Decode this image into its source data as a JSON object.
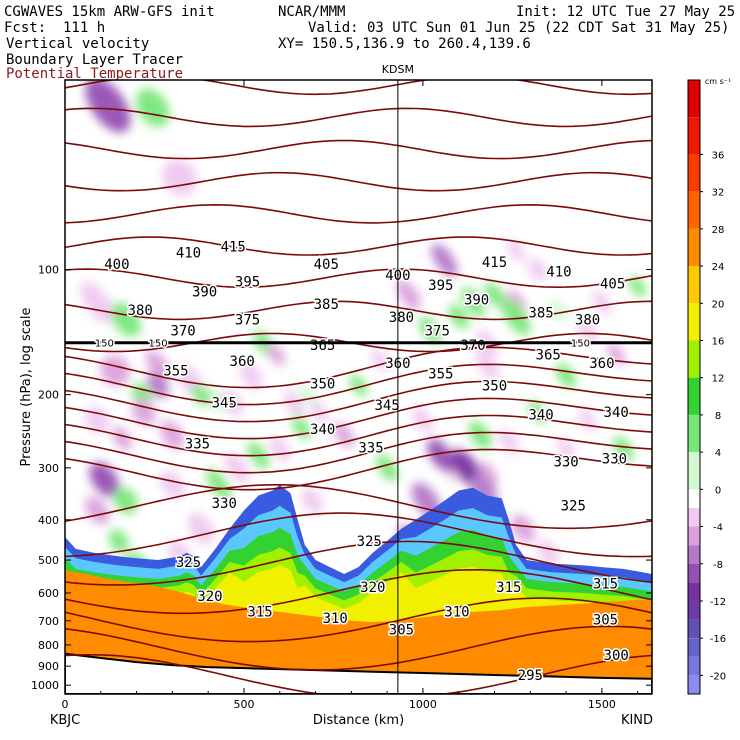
{
  "header": {
    "model": "CGWAVES 15km ARW-GFS init",
    "fcst": "Fcst:  111 h",
    "org": "NCAR/MMM",
    "init": "Init: 12 UTC Tue 27 May 25",
    "valid": "Valid: 03 UTC Sun 01 Jun 25 (22 CDT Sat 31 May 25)",
    "xy": "XY= 150.5,136.9 to 260.4,139.6",
    "fields": [
      {
        "label": "Vertical velocity",
        "color": "#000000"
      },
      {
        "label": "Boundary Layer Tracer",
        "color": "#000000"
      },
      {
        "label": "Potential Temperature",
        "color": "#8b1a1a"
      }
    ]
  },
  "chart_data": {
    "type": "heatmap",
    "title": "",
    "xlabel": "Distance (km)",
    "ylabel": "Pressure (hPa), log scale",
    "xlim": [
      0,
      1640
    ],
    "ylim": [
      1050,
      35
    ],
    "yscale": "log",
    "x_ticks": [
      0,
      500,
      1000,
      1500
    ],
    "x_tick_labels": [
      "0",
      "500",
      "1000",
      "1500"
    ],
    "y_ticks": [
      100,
      200,
      300,
      400,
      500,
      600,
      700,
      800,
      900,
      1000
    ],
    "y_tick_labels": [
      "100",
      "200",
      "300",
      "400",
      "500",
      "600",
      "700",
      "800",
      "900",
      "1000"
    ],
    "left_endpoint": "KBJC",
    "right_endpoint": "KIND",
    "marker": {
      "label": "KDSM",
      "x": 930
    },
    "tropopause_pressure": 150,
    "tropopause_labels": [
      "150",
      "150",
      "150"
    ],
    "colorbar": {
      "unit": "cm s⁻¹",
      "min": -22,
      "max": 44,
      "tick_values": [
        36,
        32,
        28,
        24,
        20,
        16,
        12,
        8,
        4,
        0,
        -4,
        -8,
        -12,
        -16,
        -20
      ],
      "tick_labels": [
        "36",
        "32",
        "28",
        "24",
        "20",
        "16",
        "12",
        "8",
        "4",
        "0",
        "-4",
        "-8",
        "-12",
        "-16",
        "-20"
      ],
      "bins": [
        {
          "lo": 40,
          "hi": 44,
          "color": "#e00000"
        },
        {
          "lo": 36,
          "hi": 40,
          "color": "#f01800"
        },
        {
          "lo": 32,
          "hi": 36,
          "color": "#fa3c00"
        },
        {
          "lo": 28,
          "hi": 32,
          "color": "#ff6400"
        },
        {
          "lo": 24,
          "hi": 28,
          "color": "#ff8c00"
        },
        {
          "lo": 20,
          "hi": 24,
          "color": "#ffc800"
        },
        {
          "lo": 16,
          "hi": 20,
          "color": "#f0f000"
        },
        {
          "lo": 12,
          "hi": 16,
          "color": "#a0f000"
        },
        {
          "lo": 8,
          "hi": 12,
          "color": "#32d232"
        },
        {
          "lo": 4,
          "hi": 8,
          "color": "#78e678"
        },
        {
          "lo": 0,
          "hi": 4,
          "color": "#d2f8d2"
        },
        {
          "lo": -2,
          "hi": 0,
          "color": "#ffffff"
        },
        {
          "lo": -4,
          "hi": -2,
          "color": "#f0c8f0"
        },
        {
          "lo": -6,
          "hi": -4,
          "color": "#dca0dc"
        },
        {
          "lo": -8,
          "hi": -6,
          "color": "#b478c8"
        },
        {
          "lo": -10,
          "hi": -8,
          "color": "#9650b4"
        },
        {
          "lo": -12,
          "hi": -10,
          "color": "#7832a0"
        },
        {
          "lo": -14,
          "hi": -12,
          "color": "#6e3caa"
        },
        {
          "lo": -16,
          "hi": -14,
          "color": "#6450b4"
        },
        {
          "lo": -18,
          "hi": -16,
          "color": "#6464c8"
        },
        {
          "lo": -20,
          "hi": -18,
          "color": "#7878dc"
        },
        {
          "lo": -22,
          "hi": -20,
          "color": "#8c8cf0"
        }
      ]
    },
    "isentrope_color": "#7b0b0b",
    "isentrope_labels": [
      {
        "text": "415",
        "x": 470,
        "p": 88
      },
      {
        "text": "410",
        "x": 345,
        "p": 91
      },
      {
        "text": "400",
        "x": 145,
        "p": 97
      },
      {
        "text": "405",
        "x": 730,
        "p": 97
      },
      {
        "text": "400",
        "x": 930,
        "p": 103
      },
      {
        "text": "415",
        "x": 1200,
        "p": 96
      },
      {
        "text": "410",
        "x": 1380,
        "p": 101
      },
      {
        "text": "405",
        "x": 1530,
        "p": 108
      },
      {
        "text": "395",
        "x": 510,
        "p": 107
      },
      {
        "text": "390",
        "x": 390,
        "p": 113
      },
      {
        "text": "395",
        "x": 1050,
        "p": 109
      },
      {
        "text": "390",
        "x": 1150,
        "p": 118
      },
      {
        "text": "385",
        "x": 730,
        "p": 121
      },
      {
        "text": "385",
        "x": 1330,
        "p": 127
      },
      {
        "text": "380",
        "x": 210,
        "p": 125
      },
      {
        "text": "375",
        "x": 510,
        "p": 132
      },
      {
        "text": "380",
        "x": 940,
        "p": 130
      },
      {
        "text": "380",
        "x": 1460,
        "p": 132
      },
      {
        "text": "370",
        "x": 330,
        "p": 140
      },
      {
        "text": "375",
        "x": 1040,
        "p": 140
      },
      {
        "text": "370",
        "x": 1140,
        "p": 152
      },
      {
        "text": "365",
        "x": 720,
        "p": 152
      },
      {
        "text": "365",
        "x": 1350,
        "p": 160
      },
      {
        "text": "360",
        "x": 495,
        "p": 166
      },
      {
        "text": "360",
        "x": 930,
        "p": 168
      },
      {
        "text": "360",
        "x": 1500,
        "p": 168
      },
      {
        "text": "355",
        "x": 310,
        "p": 175
      },
      {
        "text": "355",
        "x": 1050,
        "p": 178
      },
      {
        "text": "350",
        "x": 720,
        "p": 188
      },
      {
        "text": "350",
        "x": 1200,
        "p": 190
      },
      {
        "text": "345",
        "x": 445,
        "p": 209
      },
      {
        "text": "345",
        "x": 900,
        "p": 212
      },
      {
        "text": "340",
        "x": 720,
        "p": 242
      },
      {
        "text": "340",
        "x": 1330,
        "p": 223
      },
      {
        "text": "340",
        "x": 1540,
        "p": 220
      },
      {
        "text": "335",
        "x": 370,
        "p": 262
      },
      {
        "text": "335",
        "x": 855,
        "p": 268
      },
      {
        "text": "330",
        "x": 1400,
        "p": 290
      },
      {
        "text": "330",
        "x": 1535,
        "p": 285
      },
      {
        "text": "330",
        "x": 445,
        "p": 365
      },
      {
        "text": "325",
        "x": 1420,
        "p": 370
      },
      {
        "text": "325",
        "x": 850,
        "p": 450
      },
      {
        "text": "325",
        "x": 345,
        "p": 505
      },
      {
        "text": "320",
        "x": 405,
        "p": 610
      },
      {
        "text": "320",
        "x": 860,
        "p": 580
      },
      {
        "text": "315",
        "x": 545,
        "p": 665
      },
      {
        "text": "315",
        "x": 1240,
        "p": 580
      },
      {
        "text": "315",
        "x": 1510,
        "p": 570
      },
      {
        "text": "310",
        "x": 755,
        "p": 690
      },
      {
        "text": "310",
        "x": 1095,
        "p": 665
      },
      {
        "text": "305",
        "x": 940,
        "p": 735
      },
      {
        "text": "305",
        "x": 1510,
        "p": 695
      },
      {
        "text": "300",
        "x": 1540,
        "p": 845
      },
      {
        "text": "295",
        "x": 1300,
        "p": 945
      }
    ]
  }
}
